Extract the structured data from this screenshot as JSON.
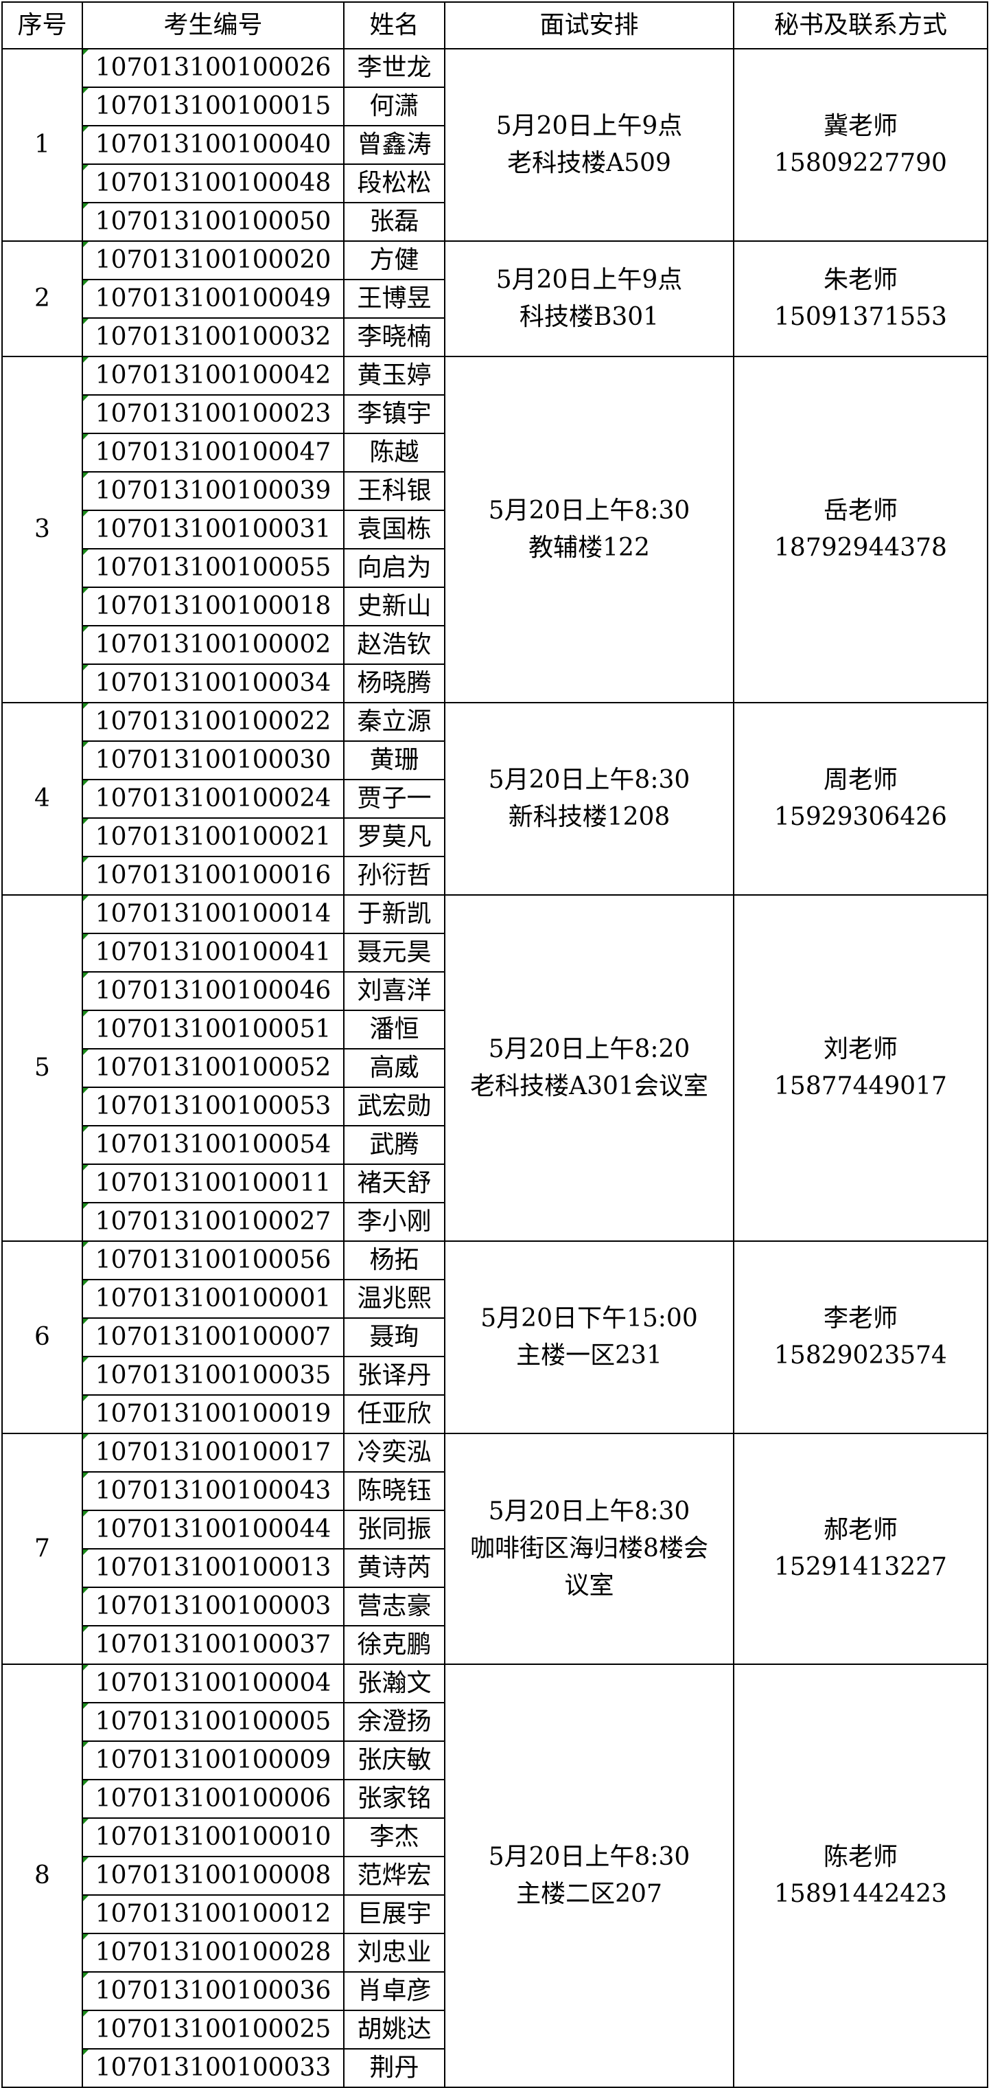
{
  "table": {
    "header": [
      "序号",
      "考生编号",
      "姓名",
      "面试安排",
      "秘书及联系方式"
    ],
    "groups": [
      {
        "seq": "1",
        "rows": [
          [
            "107013100100026",
            "李世龙"
          ],
          [
            "107013100100015",
            "何潇"
          ],
          [
            "107013100100040",
            "曾鑫涛"
          ],
          [
            "107013100100048",
            "段松松"
          ],
          [
            "107013100100050",
            "张磊"
          ]
        ],
        "schedule": [
          "5月20日上午9点",
          "老科技楼A509"
        ],
        "contact": [
          "冀老师",
          "15809227790"
        ]
      },
      {
        "seq": "2",
        "rows": [
          [
            "107013100100020",
            "方健"
          ],
          [
            "107013100100049",
            "王博昱"
          ],
          [
            "107013100100032",
            "李晓楠"
          ]
        ],
        "schedule": [
          "5月20日上午9点",
          "科技楼B301"
        ],
        "contact": [
          "朱老师",
          "15091371553"
        ]
      },
      {
        "seq": "3",
        "rows": [
          [
            "107013100100042",
            "黄玉婷"
          ],
          [
            "107013100100023",
            "李镇宇"
          ],
          [
            "107013100100047",
            "陈越"
          ],
          [
            "107013100100039",
            "王科银"
          ],
          [
            "107013100100031",
            "袁国栋"
          ],
          [
            "107013100100055",
            "向启为"
          ],
          [
            "107013100100018",
            "史新山"
          ],
          [
            "107013100100002",
            "赵浩钦"
          ],
          [
            "107013100100034",
            "杨晓腾"
          ]
        ],
        "schedule": [
          "5月20日上午8:30",
          "教辅楼122"
        ],
        "contact": [
          "岳老师",
          "18792944378"
        ]
      },
      {
        "seq": "4",
        "rows": [
          [
            "107013100100022",
            "秦立源"
          ],
          [
            "107013100100030",
            "黄珊"
          ],
          [
            "107013100100024",
            "贾子一"
          ],
          [
            "107013100100021",
            "罗莫凡"
          ],
          [
            "107013100100016",
            "孙衍哲"
          ]
        ],
        "schedule": [
          "5月20日上午8:30",
          "新科技楼1208"
        ],
        "contact": [
          "周老师",
          "15929306426"
        ]
      },
      {
        "seq": "5",
        "rows": [
          [
            "107013100100014",
            "于新凯"
          ],
          [
            "107013100100041",
            "聂元昊"
          ],
          [
            "107013100100046",
            "刘喜洋"
          ],
          [
            "107013100100051",
            "潘恒"
          ],
          [
            "107013100100052",
            "高威"
          ],
          [
            "107013100100053",
            "武宏勋"
          ],
          [
            "107013100100054",
            "武腾"
          ],
          [
            "107013100100011",
            "褚天舒"
          ],
          [
            "107013100100027",
            "李小刚"
          ]
        ],
        "schedule": [
          "5月20日上午8:20",
          "老科技楼A301会议室"
        ],
        "contact": [
          "刘老师",
          "15877449017"
        ]
      },
      {
        "seq": "6",
        "rows": [
          [
            "107013100100056",
            "杨拓"
          ],
          [
            "107013100100001",
            "温兆熙"
          ],
          [
            "107013100100007",
            "聂珣"
          ],
          [
            "107013100100035",
            "张译丹"
          ],
          [
            "107013100100019",
            "任亚欣"
          ]
        ],
        "schedule": [
          "5月20日下午15:00",
          "主楼一区231"
        ],
        "contact": [
          "李老师",
          "15829023574"
        ]
      },
      {
        "seq": "7",
        "rows": [
          [
            "107013100100017",
            "冷奕泓"
          ],
          [
            "107013100100043",
            "陈晓钰"
          ],
          [
            "107013100100044",
            "张同振"
          ],
          [
            "107013100100013",
            "黄诗芮"
          ],
          [
            "107013100100003",
            "营志豪"
          ],
          [
            "107013100100037",
            "徐克鹏"
          ]
        ],
        "schedule": [
          "5月20日上午8:30",
          "咖啡街区海归楼8楼会",
          "议室"
        ],
        "contact": [
          "郝老师",
          "15291413227"
        ]
      },
      {
        "seq": "8",
        "rows": [
          [
            "107013100100004",
            "张瀚文"
          ],
          [
            "107013100100005",
            "余澄扬"
          ],
          [
            "107013100100009",
            "张庆敏"
          ],
          [
            "107013100100006",
            "张家铭"
          ],
          [
            "107013100100010",
            "李杰"
          ],
          [
            "107013100100008",
            "范烨宏"
          ],
          [
            "107013100100012",
            "巨展宇"
          ],
          [
            "107013100100028",
            "刘忠业"
          ],
          [
            "107013100100036",
            "肖卓彦"
          ],
          [
            "107013100100025",
            "胡姚达"
          ],
          [
            "107013100100033",
            "荆丹"
          ]
        ],
        "schedule": [
          "5月20日上午8:30",
          "主楼二区207"
        ],
        "contact": [
          "陈老师",
          "15891442423"
        ]
      }
    ]
  }
}
